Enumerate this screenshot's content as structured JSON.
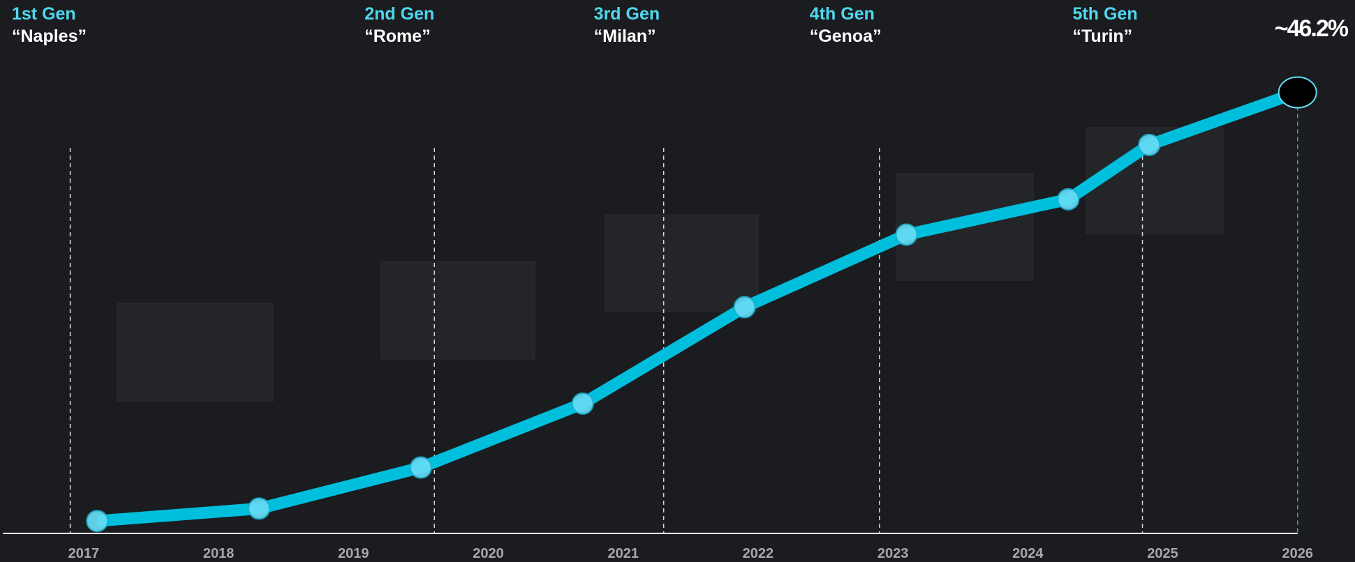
{
  "chart_data": {
    "type": "line",
    "x": [
      2017.1,
      2018.3,
      2019.5,
      2020.7,
      2021.9,
      2023.1,
      2024.3,
      2024.9,
      2026.0
    ],
    "series": [
      {
        "color": "#00bfdc",
        "values": [
          1.3,
          2.6,
          6.9,
          13.6,
          23.7,
          31.3,
          35.0,
          40.7,
          46.2
        ],
        "value_labels": [
          null,
          null,
          null,
          null,
          null,
          null,
          null,
          null,
          "~46.2%"
        ]
      }
    ],
    "xlim": [
      2016.4,
      2026.4
    ],
    "xticks": [
      2017,
      2018,
      2019,
      2020,
      2021,
      2022,
      2023,
      2024,
      2025,
      2026
    ],
    "ylim": [
      0,
      50
    ],
    "generations": [
      {
        "label": "1st Gen",
        "name": "“Naples”",
        "x": 2016.9
      },
      {
        "label": "2nd Gen",
        "name": "“Rome”",
        "x": 2019.6
      },
      {
        "label": "3rd Gen",
        "name": "“Milan”",
        "x": 2021.3
      },
      {
        "label": "4th Gen",
        "name": "“Genoa”",
        "x": 2022.9
      },
      {
        "label": "5th Gen",
        "name": "“Turin”",
        "x": 2024.85
      }
    ]
  }
}
